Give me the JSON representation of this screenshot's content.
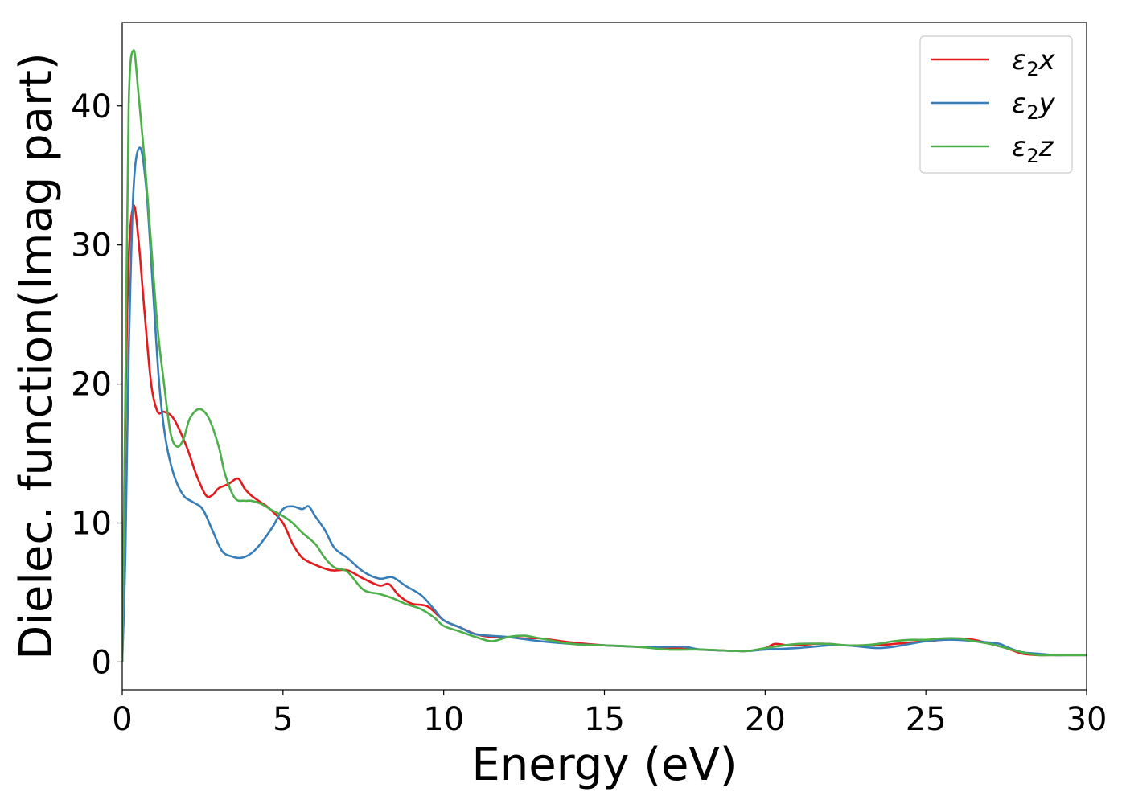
{
  "chart_data": {
    "type": "line",
    "xlabel": "Energy (eV)",
    "ylabel": "Dielec. function(Imag part)",
    "xlim": [
      0,
      30
    ],
    "ylim": [
      -2,
      46
    ],
    "xticks": [
      0,
      5,
      10,
      15,
      20,
      25,
      30
    ],
    "yticks": [
      0,
      10,
      20,
      30,
      40
    ],
    "xtick_labels": [
      "0",
      "5",
      "10",
      "15",
      "20",
      "25",
      "30"
    ],
    "ytick_labels": [
      "0",
      "10",
      "20",
      "30",
      "40"
    ],
    "grid": false,
    "legend_position": "top-right",
    "series": [
      {
        "name": "ε2x",
        "name_base": "ε",
        "name_sub": "2",
        "name_var": "x",
        "color": "#e41a1c",
        "x": [
          0,
          0.1,
          0.2,
          0.35,
          0.5,
          0.7,
          0.9,
          1.1,
          1.3,
          1.6,
          2.0,
          2.3,
          2.6,
          2.8,
          3.0,
          3.3,
          3.6,
          3.8,
          4.0,
          4.3,
          4.6,
          5.0,
          5.3,
          5.6,
          6.0,
          6.5,
          7.0,
          7.5,
          8.0,
          8.3,
          8.6,
          9.0,
          9.5,
          10.0,
          10.5,
          11.0,
          11.5,
          12.0,
          12.5,
          13.0,
          14.0,
          15.0,
          16.0,
          17.0,
          18.0,
          19.0,
          19.5,
          20.0,
          20.3,
          20.7,
          21.0,
          21.5,
          22.0,
          22.5,
          23.0,
          23.5,
          24.0,
          24.5,
          25.0,
          25.5,
          26.0,
          26.5,
          27.0,
          27.5,
          28.0,
          28.5,
          29.0,
          30.0
        ],
        "y": [
          0,
          18,
          29,
          32.8,
          30.5,
          25,
          20,
          18,
          18,
          17.5,
          15.5,
          13.5,
          12,
          12,
          12.5,
          12.8,
          13.2,
          12.5,
          12,
          11.5,
          11,
          10,
          8.5,
          7.5,
          7,
          6.6,
          6.6,
          6,
          5.5,
          5.6,
          4.8,
          4.2,
          4,
          3,
          2.5,
          2,
          1.8,
          1.8,
          1.7,
          1.7,
          1.4,
          1.2,
          1.1,
          1.0,
          0.9,
          0.8,
          0.8,
          1.0,
          1.3,
          1.2,
          1.2,
          1.3,
          1.3,
          1.2,
          1.2,
          1.2,
          1.3,
          1.4,
          1.5,
          1.6,
          1.7,
          1.6,
          1.3,
          1.0,
          0.6,
          0.5,
          0.5,
          0.5
        ]
      },
      {
        "name": "ε2y",
        "name_base": "ε",
        "name_sub": "2",
        "name_var": "y",
        "color": "#377eb8",
        "x": [
          0,
          0.1,
          0.2,
          0.35,
          0.55,
          0.75,
          0.95,
          1.15,
          1.35,
          1.6,
          1.9,
          2.2,
          2.5,
          2.8,
          3.1,
          3.4,
          3.7,
          4.0,
          4.3,
          4.7,
          5.0,
          5.3,
          5.6,
          5.8,
          6.0,
          6.3,
          6.6,
          7.0,
          7.5,
          8.0,
          8.4,
          8.8,
          9.3,
          9.7,
          10.0,
          10.5,
          11.0,
          12.0,
          13.0,
          14.0,
          15.0,
          16.0,
          17.0,
          17.5,
          18.0,
          19.0,
          19.5,
          20.0,
          21.0,
          22.0,
          22.5,
          23.0,
          23.5,
          24.0,
          24.5,
          25.0,
          25.5,
          26.0,
          26.5,
          27.0,
          27.3,
          27.6,
          28.0,
          28.5,
          29.0,
          29.5,
          30.0
        ],
        "y": [
          0,
          8,
          22,
          34,
          37,
          34,
          27,
          20,
          16,
          13.5,
          12,
          11.5,
          11,
          9.5,
          8,
          7.6,
          7.5,
          7.8,
          8.5,
          9.8,
          11,
          11.2,
          11,
          11.2,
          10.5,
          9.5,
          8.2,
          7.5,
          6.5,
          6,
          6.1,
          5.5,
          4.8,
          3.8,
          3,
          2.5,
          2,
          1.8,
          1.5,
          1.3,
          1.2,
          1.1,
          1.1,
          1.1,
          0.9,
          0.8,
          0.8,
          0.9,
          1.0,
          1.2,
          1.2,
          1.1,
          1.0,
          1.1,
          1.3,
          1.5,
          1.6,
          1.6,
          1.5,
          1.4,
          1.3,
          1.0,
          0.7,
          0.6,
          0.5,
          0.5,
          0.5
        ]
      },
      {
        "name": "ε2z",
        "name_base": "ε",
        "name_sub": "2",
        "name_var": "z",
        "color": "#4daf4a",
        "x": [
          0,
          0.1,
          0.2,
          0.35,
          0.5,
          0.7,
          0.9,
          1.1,
          1.3,
          1.5,
          1.7,
          1.9,
          2.1,
          2.4,
          2.7,
          3.0,
          3.2,
          3.5,
          3.8,
          4.0,
          4.3,
          4.6,
          5.0,
          5.3,
          5.6,
          6.0,
          6.3,
          6.6,
          7.0,
          7.5,
          8.0,
          8.4,
          8.8,
          9.3,
          9.7,
          10.0,
          10.5,
          11.0,
          11.5,
          12.0,
          12.5,
          13.0,
          14.0,
          15.0,
          16.0,
          17.0,
          18.0,
          19.0,
          19.5,
          20.0,
          21.0,
          22.0,
          22.5,
          23.0,
          23.5,
          24.0,
          24.5,
          25.0,
          25.5,
          26.0,
          26.5,
          27.0,
          27.5,
          28.0,
          28.5,
          29.0,
          30.0
        ],
        "y": [
          0,
          20,
          40,
          44,
          41,
          36,
          30,
          24,
          20,
          16.5,
          15.5,
          16,
          17.5,
          18.2,
          17.5,
          15.5,
          13.5,
          11.8,
          11.6,
          11.6,
          11.4,
          11,
          10.5,
          10,
          9.3,
          8.5,
          7.5,
          6.8,
          6.5,
          5.2,
          4.9,
          4.6,
          4.2,
          3.8,
          3.2,
          2.6,
          2.2,
          1.8,
          1.5,
          1.8,
          1.9,
          1.7,
          1.3,
          1.2,
          1.1,
          0.9,
          0.9,
          0.8,
          0.8,
          1.0,
          1.3,
          1.3,
          1.2,
          1.2,
          1.3,
          1.5,
          1.6,
          1.6,
          1.7,
          1.7,
          1.5,
          1.3,
          1.0,
          0.7,
          0.5,
          0.5,
          0.5
        ]
      }
    ]
  }
}
